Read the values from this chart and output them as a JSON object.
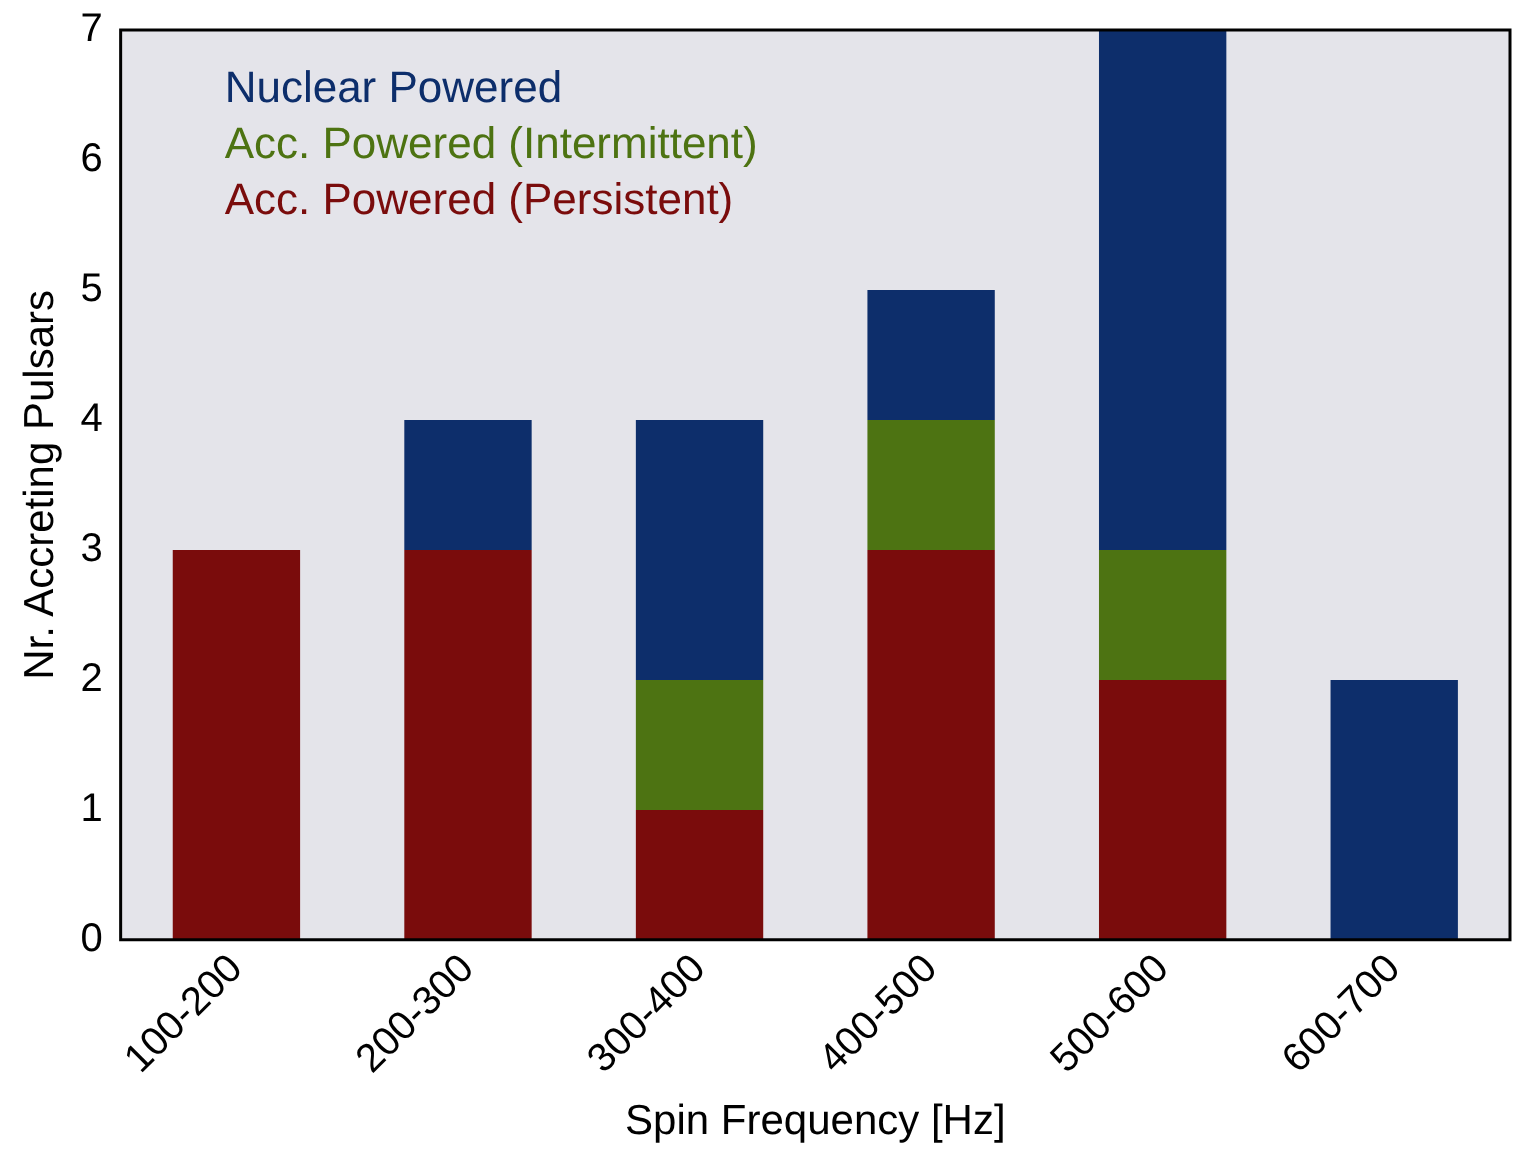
{
  "chart_data": {
    "type": "bar",
    "stacked": true,
    "xlabel": "Spin Frequency [Hz]",
    "ylabel": "Nr. Accreting Pulsars",
    "categories": [
      "100-200",
      "200-300",
      "300-400",
      "400-500",
      "500-600",
      "600-700"
    ],
    "series": [
      {
        "name": "Acc. Powered (Persistent)",
        "color": "#7a0c0c",
        "values": [
          3,
          3,
          1,
          3,
          2,
          0
        ]
      },
      {
        "name": "Acc. Powered (Intermittent)",
        "color": "#4d7312",
        "values": [
          0,
          0,
          1,
          1,
          1,
          0
        ]
      },
      {
        "name": "Nuclear Powered",
        "color": "#0d2e6b",
        "values": [
          0,
          1,
          2,
          1,
          4,
          2
        ]
      }
    ],
    "ylim": [
      0,
      7
    ],
    "yticks": [
      0,
      1,
      2,
      3,
      4,
      5,
      6,
      7
    ],
    "legend": "top left",
    "grid": false
  }
}
